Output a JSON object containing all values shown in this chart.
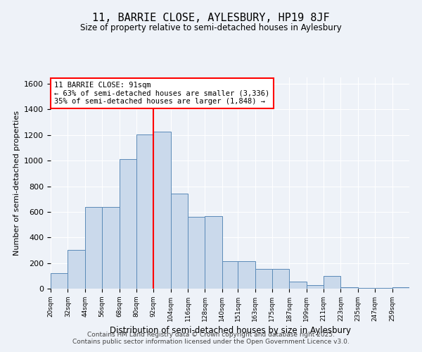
{
  "title": "11, BARRIE CLOSE, AYLESBURY, HP19 8JF",
  "subtitle": "Size of property relative to semi-detached houses in Aylesbury",
  "xlabel": "Distribution of semi-detached houses by size in Aylesbury",
  "ylabel": "Number of semi-detached properties",
  "property_label": "11 BARRIE CLOSE: 91sqm",
  "pct_smaller": 63,
  "count_smaller": 3336,
  "pct_larger": 35,
  "count_larger": 1848,
  "bin_labels": [
    "20sqm",
    "32sqm",
    "44sqm",
    "56sqm",
    "68sqm",
    "80sqm",
    "92sqm",
    "104sqm",
    "116sqm",
    "128sqm",
    "140sqm",
    "151sqm",
    "163sqm",
    "175sqm",
    "187sqm",
    "199sqm",
    "211sqm",
    "223sqm",
    "235sqm",
    "247sqm",
    "259sqm"
  ],
  "bin_edges": [
    20,
    32,
    44,
    56,
    68,
    80,
    92,
    104,
    116,
    128,
    140,
    151,
    163,
    175,
    187,
    199,
    211,
    223,
    235,
    247,
    259,
    271
  ],
  "bar_heights": [
    120,
    305,
    640,
    640,
    1010,
    1205,
    1225,
    740,
    560,
    565,
    215,
    215,
    155,
    155,
    55,
    30,
    100,
    10,
    5,
    5,
    10
  ],
  "bar_color": "#cad9eb",
  "bar_edge_color": "#5b8ab8",
  "vline_x": 92,
  "vline_color": "red",
  "annotation_box_color": "#ffffff",
  "annotation_box_edge": "red",
  "ylim": [
    0,
    1650
  ],
  "xlim": [
    20,
    271
  ],
  "background_color": "#eef2f8",
  "footer_text": "Contains HM Land Registry data © Crown copyright and database right 2025.\nContains public sector information licensed under the Open Government Licence v3.0."
}
